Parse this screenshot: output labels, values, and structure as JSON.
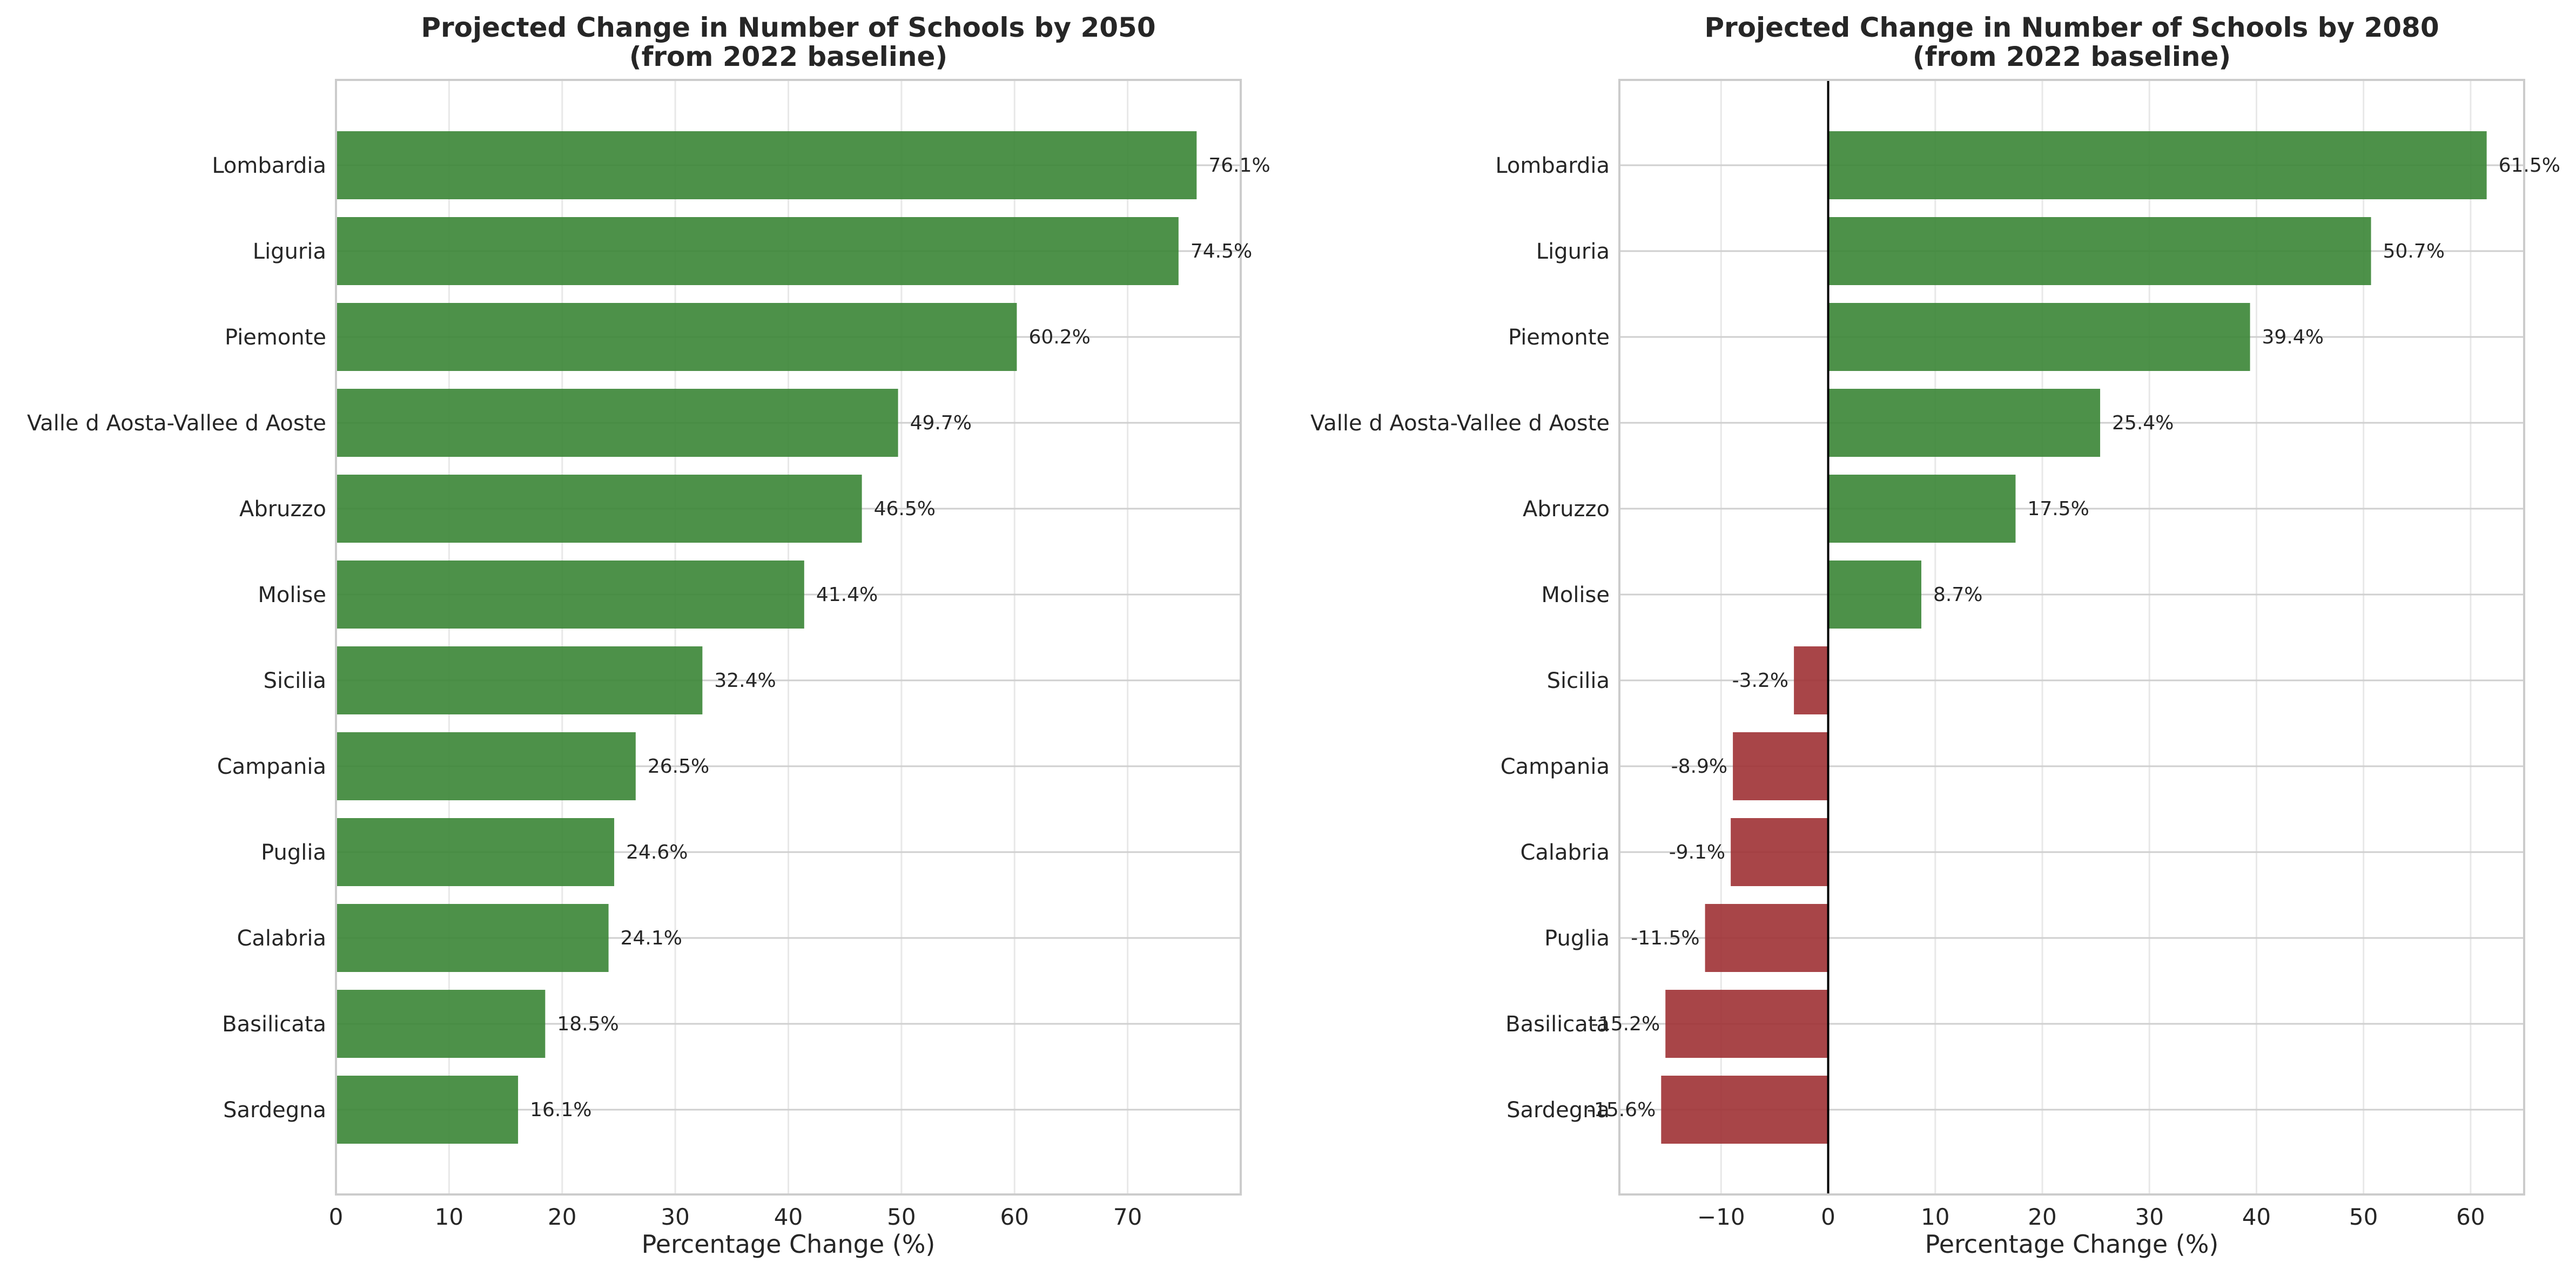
{
  "colors": {
    "positive": "#3a8535",
    "negative": "#9e3134",
    "grid": "#e8e8e8",
    "hgrid": "#cfcfcf",
    "frame": "#cccccc",
    "text": "#262626",
    "zero_line": "#000000"
  },
  "chart_data": [
    {
      "type": "bar",
      "orientation": "horizontal",
      "title": "Projected Change in Number of Schools by 2050",
      "subtitle": "(from 2022 baseline)",
      "xlabel": "Percentage Change (%)",
      "ylabel": "",
      "xlim": [
        0,
        80
      ],
      "xticks": [
        0,
        10,
        20,
        30,
        40,
        50,
        60,
        70
      ],
      "xtick_labels": [
        "0",
        "10",
        "20",
        "30",
        "40",
        "50",
        "60",
        "70"
      ],
      "grid": true,
      "categories": [
        "Lombardia",
        "Liguria",
        "Piemonte",
        "Valle d Aosta-Vallee d Aoste",
        "Abruzzo",
        "Molise",
        "Sicilia",
        "Campania",
        "Puglia",
        "Calabria",
        "Basilicata",
        "Sardegna"
      ],
      "values": [
        76.1,
        74.5,
        60.2,
        49.7,
        46.5,
        41.4,
        32.4,
        26.5,
        24.6,
        24.1,
        18.5,
        16.1
      ],
      "value_labels": [
        "76.1%",
        "74.5%",
        "60.2%",
        "49.7%",
        "46.5%",
        "41.4%",
        "32.4%",
        "26.5%",
        "24.6%",
        "24.1%",
        "18.5%",
        "16.1%"
      ]
    },
    {
      "type": "bar",
      "orientation": "horizontal",
      "title": "Projected Change in Number of Schools by 2080",
      "subtitle": "(from 2022 baseline)",
      "xlabel": "Percentage Change (%)",
      "ylabel": "",
      "xlim": [
        -19.5,
        65
      ],
      "xticks": [
        -10,
        0,
        10,
        20,
        30,
        40,
        50,
        60
      ],
      "xtick_labels": [
        "−10",
        "0",
        "10",
        "20",
        "30",
        "40",
        "50",
        "60"
      ],
      "grid": true,
      "zero_line": true,
      "categories": [
        "Lombardia",
        "Liguria",
        "Piemonte",
        "Valle d Aosta-Vallee d Aoste",
        "Abruzzo",
        "Molise",
        "Sicilia",
        "Campania",
        "Calabria",
        "Puglia",
        "Basilicata",
        "Sardegna"
      ],
      "values": [
        61.5,
        50.7,
        39.4,
        25.4,
        17.5,
        8.7,
        -3.2,
        -8.9,
        -9.1,
        -11.5,
        -15.2,
        -15.6
      ],
      "value_labels": [
        "61.5%",
        "50.7%",
        "39.4%",
        "25.4%",
        "17.5%",
        "8.7%",
        "-3.2%",
        "-8.9%",
        "-9.1%",
        "-11.5%",
        "-15.2%",
        "-15.6%"
      ]
    }
  ]
}
